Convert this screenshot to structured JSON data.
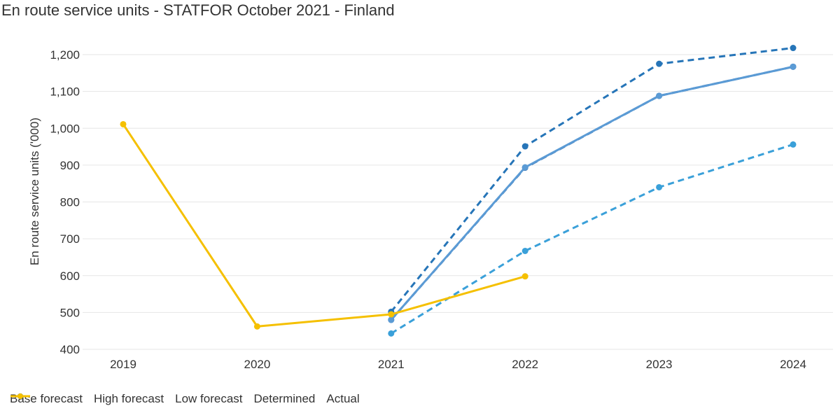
{
  "chart_data": {
    "type": "line",
    "title": "En route service units - STATFOR October 2021 - Finland",
    "ylabel": "En route service units ('000)",
    "xlabel": "",
    "categories": [
      "2019",
      "2020",
      "2021",
      "2022",
      "2023",
      "2024"
    ],
    "ylim": [
      400,
      1200
    ],
    "yticks": [
      "400",
      "500",
      "600",
      "700",
      "800",
      "900",
      "1,000",
      "1,100",
      "1,200"
    ],
    "ytick_values": [
      400,
      500,
      600,
      700,
      800,
      900,
      1000,
      1100,
      1200
    ],
    "grid": true,
    "legend_position": "bottom-left",
    "series": [
      {
        "name": "Base forecast",
        "color": "#1f5fa6",
        "dash": true,
        "values": [
          null,
          null,
          480,
          893,
          1088,
          1167
        ]
      },
      {
        "name": "High forecast",
        "color": "#2675b8",
        "dash": true,
        "values": [
          null,
          null,
          502,
          951,
          1175,
          1218
        ]
      },
      {
        "name": "Low forecast",
        "color": "#3aa0d9",
        "dash": true,
        "values": [
          null,
          null,
          443,
          667,
          840,
          956
        ]
      },
      {
        "name": "Determined",
        "color": "#5b9bd5",
        "dash": false,
        "values": [
          null,
          null,
          480,
          894,
          1088,
          1167
        ]
      },
      {
        "name": "Actual",
        "color": "#f5c000",
        "dash": false,
        "values": [
          1011,
          462,
          495,
          598,
          null,
          null
        ]
      }
    ]
  }
}
